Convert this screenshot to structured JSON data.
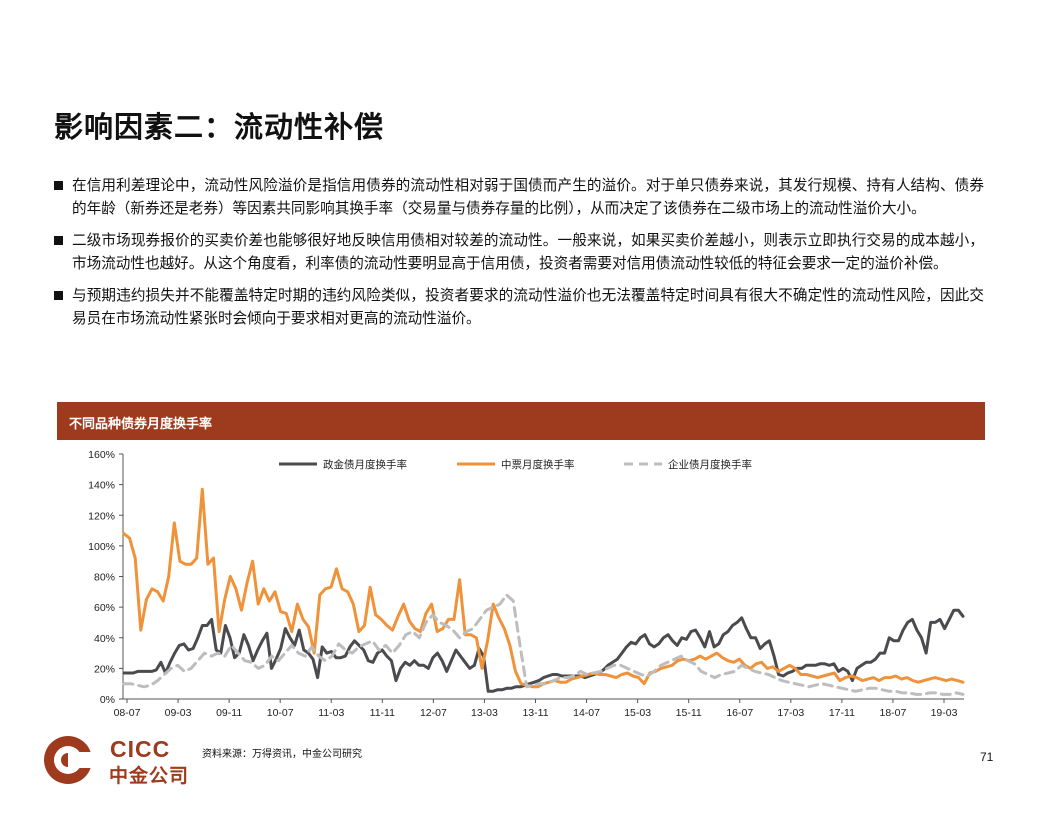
{
  "slide": {
    "title": "影响因素二：流动性补偿",
    "page_number": "71",
    "source": "资料来源：万得资讯，中金公司研究"
  },
  "bullets": [
    "在信用利差理论中，流动性风险溢价是指信用债券的流动性相对弱于国债而产生的溢价。对于单只债券来说，其发行规模、持有人结构、债券的年龄（新券还是老券）等因素共同影响其换手率（交易量与债券存量的比例），从而决定了该债券在二级市场上的流动性溢价大小。",
    "二级市场现券报价的买卖价差也能够很好地反映信用债相对较差的流动性。一般来说，如果买卖价差越小，则表示立即执行交易的成本越小，市场流动性也越好。从这个角度看，利率债的流动性要明显高于信用债，投资者需要对信用债流动性较低的特征会要求一定的溢价补偿。",
    "与预期违约损失并不能覆盖特定时期的违约风险类似，投资者要求的流动性溢价也无法覆盖特定时间具有很大不确定性的流动性风险，因此交易员在市场流动性紧张时会倾向于要求相对更高的流动性溢价。"
  ],
  "logo": {
    "en": "CICC",
    "cn": "中金公司"
  },
  "colors": {
    "header": "#9e3a1d",
    "govt_series": "#4a4a4f",
    "mtn_series": "#f0923a",
    "corp_series": "#bdbdbd"
  },
  "chart_data": {
    "type": "line",
    "title": "不同品种债券月度换手率",
    "xlabel": "",
    "ylabel": "",
    "ylim": [
      0,
      160
    ],
    "y_ticks": [
      "0%",
      "20%",
      "40%",
      "60%",
      "80%",
      "100%",
      "120%",
      "140%",
      "160%"
    ],
    "x_ticks": [
      "08-07",
      "09-03",
      "09-11",
      "10-07",
      "11-03",
      "11-11",
      "12-07",
      "13-03",
      "13-11",
      "14-07",
      "15-03",
      "15-11",
      "16-07",
      "17-03",
      "17-11",
      "18-07",
      "19-03"
    ],
    "x_start": "2008-07",
    "x_end": "2019-09",
    "legend_position": "top",
    "grid": false,
    "series": [
      {
        "name": "政金债月度换手率",
        "style": "solid",
        "values": [
          17,
          17,
          17,
          18,
          18,
          18,
          18,
          19,
          24,
          17,
          24,
          30,
          35,
          36,
          32,
          33,
          40,
          48,
          48,
          52,
          32,
          30,
          48,
          40,
          27,
          30,
          42,
          35,
          25,
          32,
          38,
          43,
          20,
          26,
          33,
          46,
          40,
          35,
          45,
          32,
          30,
          26,
          14,
          34,
          30,
          31,
          27,
          27,
          28,
          34,
          38,
          35,
          32,
          25,
          24,
          30,
          32,
          28,
          25,
          12,
          20,
          24,
          22,
          25,
          22,
          22,
          20,
          27,
          30,
          25,
          18,
          25,
          32,
          28,
          24,
          20,
          22,
          33,
          28,
          5,
          5,
          6,
          6,
          7,
          7,
          8,
          8,
          9,
          10,
          11,
          12,
          14,
          15,
          16,
          16,
          15,
          15,
          15,
          15,
          15,
          14,
          15,
          16,
          17,
          19,
          22,
          24,
          26,
          30,
          34,
          37,
          36,
          40,
          42,
          36,
          34,
          36,
          40,
          42,
          38,
          35,
          40,
          39,
          44,
          45,
          40,
          34,
          44,
          34,
          36,
          42,
          44,
          48,
          50,
          53,
          46,
          40,
          40,
          33,
          36,
          38,
          28,
          16,
          15,
          17,
          18,
          20,
          20,
          22,
          22,
          22,
          23,
          23,
          22,
          23,
          18,
          20,
          18,
          12,
          20,
          22,
          24,
          24,
          26,
          30,
          30,
          40,
          38,
          38,
          45,
          50,
          52,
          45,
          40,
          30,
          50,
          50,
          52,
          46,
          52,
          58,
          58,
          54
        ]
      },
      {
        "name": "中票月度换手率",
        "style": "solid",
        "values": [
          108,
          105,
          92,
          45,
          65,
          72,
          70,
          64,
          80,
          115,
          90,
          88,
          88,
          92,
          137,
          88,
          92,
          44,
          65,
          80,
          72,
          58,
          76,
          90,
          62,
          72,
          64,
          70,
          57,
          56,
          44,
          62,
          52,
          47,
          30,
          68,
          72,
          73,
          85,
          72,
          70,
          62,
          44,
          48,
          73,
          55,
          52,
          48,
          45,
          54,
          62,
          51,
          46,
          44,
          56,
          62,
          44,
          46,
          52,
          52,
          78,
          42,
          42,
          40,
          20,
          38,
          62,
          53,
          46,
          35,
          18,
          10,
          9,
          8,
          8,
          10,
          11,
          12,
          11,
          11,
          13,
          14,
          15,
          16,
          17,
          16,
          16,
          15,
          14,
          16,
          17,
          15,
          14,
          10,
          17,
          18,
          20,
          21,
          22,
          25,
          26,
          25,
          26,
          28,
          26,
          28,
          30,
          27,
          25,
          24,
          26,
          22,
          20,
          23,
          24,
          20,
          21,
          18,
          20,
          22,
          20,
          16,
          16,
          15,
          14,
          15,
          16,
          17,
          12,
          14,
          15,
          14,
          12,
          13,
          14,
          12,
          14,
          14,
          15,
          13,
          14,
          12,
          11,
          12,
          13,
          14,
          13,
          12,
          13,
          12,
          11
        ]
      },
      {
        "name": "企业债月度换手率",
        "style": "dashed",
        "values": [
          10,
          10,
          9,
          8,
          9,
          12,
          16,
          20,
          22,
          18,
          20,
          25,
          30,
          28,
          30,
          28,
          35,
          30,
          25,
          24,
          20,
          22,
          28,
          25,
          30,
          35,
          30,
          28,
          34,
          28,
          25,
          28,
          36,
          32,
          30,
          34,
          36,
          38,
          32,
          35,
          30,
          35,
          42,
          44,
          40,
          50,
          55,
          50,
          48,
          45,
          40,
          44,
          46,
          52,
          58,
          60,
          62,
          68,
          64,
          35,
          8,
          9,
          10,
          10,
          12,
          14,
          14,
          15,
          18,
          16,
          17,
          18,
          20,
          22,
          22,
          20,
          18,
          16,
          15,
          18,
          22,
          24,
          26,
          28,
          25,
          23,
          18,
          16,
          14,
          16,
          17,
          18,
          22,
          20,
          18,
          17,
          16,
          14,
          12,
          11,
          10,
          9,
          8,
          9,
          10,
          9,
          8,
          7,
          6,
          5,
          6,
          7,
          7,
          6,
          5,
          5,
          4,
          4,
          3,
          3,
          4,
          4,
          3,
          3,
          4,
          3
        ]
      }
    ]
  }
}
